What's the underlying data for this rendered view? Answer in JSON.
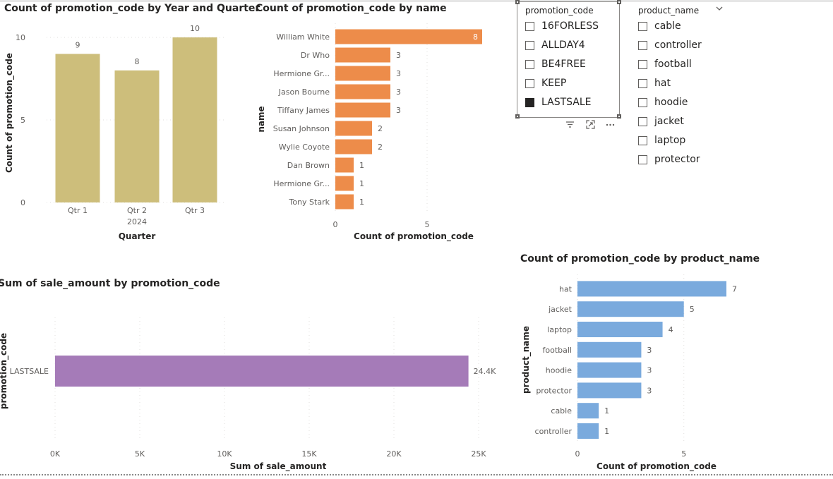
{
  "charts": {
    "quarter": {
      "title": "Count of promotion_code by Year and Quarter",
      "chart_data": {
        "type": "bar",
        "categories": [
          "Qtr 1",
          "Qtr 2",
          "Qtr 3"
        ],
        "values": [
          9,
          8,
          10
        ],
        "year_label": "2024",
        "xlabel": "Quarter",
        "ylabel": "Count of promotion_code",
        "ylim": [
          0,
          10
        ],
        "yticks": [
          "0",
          "5",
          "10"
        ],
        "data_labels": [
          "9",
          "8",
          "10"
        ],
        "color": "#CDBE7B"
      }
    },
    "name": {
      "title": "Count of promotion_code by name",
      "chart_data": {
        "type": "bar",
        "orientation": "horizontal",
        "categories": [
          "William White",
          "Dr Who",
          "Hermione Gr...",
          "Jason Bourne",
          "Tiffany James",
          "Susan Johnson",
          "Wylie Coyote",
          "Dan Brown",
          "Hermione Gr...",
          "Tony Stark"
        ],
        "values": [
          8,
          3,
          3,
          3,
          3,
          2,
          2,
          1,
          1,
          1
        ],
        "data_labels": [
          "8",
          "3",
          "3",
          "3",
          "3",
          "2",
          "2",
          "1",
          "1",
          "1"
        ],
        "xlabel": "Count of promotion_code",
        "ylabel": "name",
        "xlim": [
          0,
          8
        ],
        "xticks": [
          "0",
          "5"
        ],
        "color": "#ED8C4A"
      }
    },
    "sale": {
      "title": "Sum of sale_amount by promotion_code",
      "chart_data": {
        "type": "bar",
        "orientation": "horizontal",
        "categories": [
          "LASTSALE"
        ],
        "values": [
          24400
        ],
        "data_labels": [
          "24.4K"
        ],
        "xlabel": "Sum of sale_amount",
        "ylabel": "promotion_code",
        "xlim": [
          0,
          25000
        ],
        "xticks": [
          "0K",
          "5K",
          "10K",
          "15K",
          "20K",
          "25K"
        ],
        "color": "#A57BB8"
      }
    },
    "product": {
      "title": "Count of promotion_code by product_name",
      "chart_data": {
        "type": "bar",
        "orientation": "horizontal",
        "categories": [
          "hat",
          "jacket",
          "laptop",
          "football",
          "hoodie",
          "protector",
          "cable",
          "controller"
        ],
        "values": [
          7,
          5,
          4,
          3,
          3,
          3,
          1,
          1
        ],
        "data_labels": [
          "7",
          "5",
          "4",
          "3",
          "3",
          "3",
          "1",
          "1"
        ],
        "xlabel": "Count of promotion_code",
        "ylabel": "product_name",
        "xlim": [
          0,
          7
        ],
        "xticks": [
          "0",
          "5"
        ],
        "color": "#7AAADD"
      }
    }
  },
  "slicers": {
    "promotion": {
      "header": "promotion_code",
      "items": [
        {
          "label": "16FORLESS",
          "checked": false
        },
        {
          "label": "ALLDAY4",
          "checked": false
        },
        {
          "label": "BE4FREE",
          "checked": false
        },
        {
          "label": "KEEP",
          "checked": false
        },
        {
          "label": "LASTSALE",
          "checked": true
        }
      ],
      "icons": [
        "filter-icon",
        "focus-mode-icon",
        "more-options-icon"
      ]
    },
    "product": {
      "header": "product_name",
      "items": [
        {
          "label": "cable",
          "checked": false
        },
        {
          "label": "controller",
          "checked": false
        },
        {
          "label": "football",
          "checked": false
        },
        {
          "label": "hat",
          "checked": false
        },
        {
          "label": "hoodie",
          "checked": false
        },
        {
          "label": "jacket",
          "checked": false
        },
        {
          "label": "laptop",
          "checked": false
        },
        {
          "label": "protector",
          "checked": false
        }
      ],
      "dropdown_icon": "chevron-down-icon"
    }
  }
}
